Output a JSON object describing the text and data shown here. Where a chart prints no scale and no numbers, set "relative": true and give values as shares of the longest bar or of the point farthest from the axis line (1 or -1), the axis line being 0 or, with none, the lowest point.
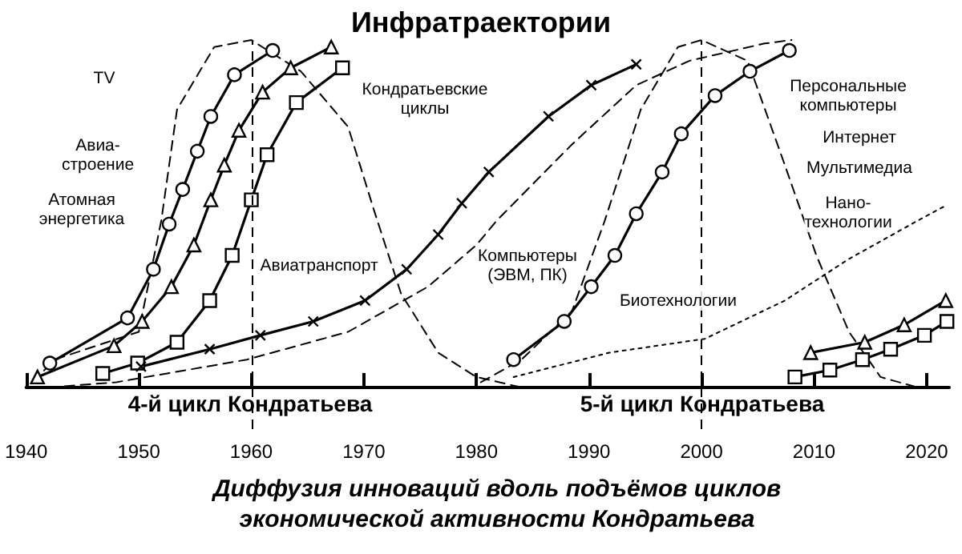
{
  "chart_data": {
    "type": "line",
    "title": "Инфратраектории",
    "relative": true,
    "grid": false,
    "xlim": [
      1940,
      2022
    ],
    "xticks": [
      1940,
      1950,
      1960,
      1970,
      1980,
      1990,
      2000,
      2010,
      2020
    ],
    "series": [
      {
        "color": "#000000",
        "marker": "none",
        "line_style": "dashed",
        "x": [
          1940.6,
          1942.5,
          1950,
          1952,
          1953.4,
          1956.7,
          1960,
          1964.4,
          1968.6,
          1970.9,
          1973.3,
          1976.6,
          1980,
          1984
        ],
        "values": [
          0.015,
          0.08,
          0.16,
          0.48,
          0.8,
          0.98,
          1,
          0.91,
          0.75,
          0.51,
          0.27,
          0.1,
          0.03,
          0
        ]
      },
      {
        "color": "#000000",
        "marker": "none",
        "line_style": "dashed",
        "x": [
          1980.4,
          1984,
          1988.5,
          1991.4,
          1994.6,
          1997.9,
          2000,
          2004.1,
          2007.4,
          2010.2,
          2013.1,
          2015.9,
          2019.2
        ],
        "values": [
          0.015,
          0.08,
          0.22,
          0.48,
          0.8,
          0.98,
          1,
          0.94,
          0.64,
          0.38,
          0.16,
          0.03,
          0
        ]
      },
      {
        "color": "#000000",
        "marker": "circle",
        "line_style": "solid",
        "x": [
          1942.1,
          1949,
          1951.3,
          1952.7,
          1953.9,
          1955.2,
          1956.4,
          1958.5,
          1961.9
        ],
        "values": [
          0.07,
          0.2,
          0.34,
          0.47,
          0.57,
          0.68,
          0.78,
          0.9,
          0.97
        ]
      },
      {
        "color": "#000000",
        "marker": "triangle",
        "line_style": "solid",
        "x": [
          1941,
          1947.8,
          1950.3,
          1952.9,
          1954.9,
          1956.4,
          1957.6,
          1958.9,
          1961,
          1963.5,
          1967.1
        ],
        "values": [
          0.03,
          0.12,
          0.19,
          0.29,
          0.41,
          0.54,
          0.64,
          0.74,
          0.85,
          0.92,
          0.98
        ]
      },
      {
        "color": "#000000",
        "marker": "square",
        "line_style": "solid",
        "x": [
          1946.8,
          1949.9,
          1953.4,
          1956.3,
          1958.3,
          1960,
          1961.4,
          1964,
          1968.1
        ],
        "values": [
          0.04,
          0.07,
          0.13,
          0.25,
          0.38,
          0.54,
          0.67,
          0.82,
          0.92
        ]
      },
      {
        "color": "#000000",
        "marker": "cross",
        "line_style": "solid",
        "x": [
          1950.2,
          1956.3,
          1960.8,
          1965.5,
          1970.1,
          1973.8,
          1976.6,
          1978.7,
          1981.1,
          1986.4,
          1990.2,
          1994.2
        ],
        "values": [
          0.06,
          0.11,
          0.15,
          0.19,
          0.25,
          0.34,
          0.44,
          0.53,
          0.62,
          0.78,
          0.87,
          0.93
        ]
      },
      {
        "color": "#000000",
        "marker": "none",
        "line_style": "dashed",
        "x": [
          1942,
          1948,
          1959.6,
          1968.6,
          1975.7,
          1980,
          1981.8,
          1988.5,
          1994.2,
          1998.9,
          2005.6,
          2008
        ],
        "values": [
          0,
          0.015,
          0.08,
          0.16,
          0.29,
          0.41,
          0.48,
          0.7,
          0.87,
          0.94,
          0.99,
          1
        ]
      },
      {
        "color": "#000000",
        "marker": "circle",
        "line_style": "solid",
        "x": [
          1983.3,
          1987.8,
          1990.2,
          1992.3,
          1994.2,
          1996.5,
          1998.2,
          2001.2,
          2004.3,
          2007.8
        ],
        "values": [
          0.08,
          0.19,
          0.29,
          0.38,
          0.5,
          0.62,
          0.73,
          0.84,
          0.91,
          0.97
        ]
      },
      {
        "color": "#000000",
        "marker": "none",
        "line_style": "dotted",
        "x": [
          1983.3,
          1991.8,
          2000.3,
          2007.4,
          2013.1,
          2019.2,
          2021.5
        ],
        "values": [
          0.03,
          0.1,
          0.14,
          0.25,
          0.37,
          0.48,
          0.52
        ]
      },
      {
        "color": "#000000",
        "marker": "triangle",
        "line_style": "solid",
        "x": [
          2009.7,
          2014.5,
          2018,
          2021.7
        ],
        "values": [
          0.1,
          0.13,
          0.18,
          0.25
        ]
      },
      {
        "color": "#000000",
        "marker": "square",
        "line_style": "solid",
        "x": [
          2008.3,
          2011.4,
          2014.3,
          2016.8,
          2019.8,
          2021.8
        ],
        "values": [
          0.03,
          0.05,
          0.08,
          0.11,
          0.15,
          0.19
        ]
      }
    ],
    "ref_lines": [
      {
        "axis": "x",
        "value": 1960
      },
      {
        "axis": "x",
        "value": 2000
      }
    ],
    "annotations": [
      "TV",
      "Авиа-\nстроение",
      "Атомная\nэнергетика",
      "Кондратьевские\nциклы",
      "Авиатранспорт",
      "Компьютеры\n(ЭВМ, ПК)",
      "Биотехнологии",
      "Персональные\nкомпьютеры",
      "Интернет",
      "Мультимедиа",
      "Нано-\nтехнологии",
      "4-й цикл Кондратьева",
      "5-й цикл Кондратьева",
      "Диффузия инноваций вдоль подъёмов циклов\nэкономической активности Кондратьева"
    ]
  }
}
